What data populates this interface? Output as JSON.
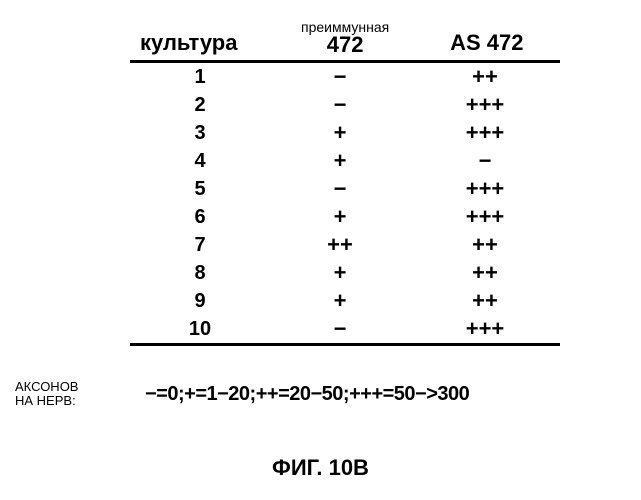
{
  "table": {
    "headers": {
      "col1": "культура",
      "col2_sup": "преиммунная",
      "col2_main": "472",
      "col3": "AS  472"
    },
    "rows": [
      {
        "culture": "1",
        "preimmune": "−",
        "as472": "++"
      },
      {
        "culture": "2",
        "preimmune": "−",
        "as472": "+++"
      },
      {
        "culture": "3",
        "preimmune": "+",
        "as472": "+++"
      },
      {
        "culture": "4",
        "preimmune": "+",
        "as472": "−"
      },
      {
        "culture": "5",
        "preimmune": "−",
        "as472": "+++"
      },
      {
        "culture": "6",
        "preimmune": "+",
        "as472": "+++"
      },
      {
        "culture": "7",
        "preimmune": "++",
        "as472": "++"
      },
      {
        "culture": "8",
        "preimmune": "+",
        "as472": "++"
      },
      {
        "culture": "9",
        "preimmune": "+",
        "as472": "++"
      },
      {
        "culture": "10",
        "preimmune": "−",
        "as472": "+++"
      }
    ]
  },
  "legend": {
    "label_line1": "АКСОНОВ",
    "label_line2": "НА НЕРВ:",
    "scale": "−=0;+=1−20;++=20−50;+++=50−>300"
  },
  "caption": "ФИГ. 10B",
  "style": {
    "font_family": "Arial",
    "background": "#ffffff",
    "text_color": "#000000",
    "rule_color": "#000000",
    "header_fontsize": 22,
    "sup_fontsize": 14,
    "cell_fontsize": 20,
    "legend_label_fontsize": 13,
    "legend_scale_fontsize": 20,
    "caption_fontsize": 22,
    "rule_width": 3
  }
}
